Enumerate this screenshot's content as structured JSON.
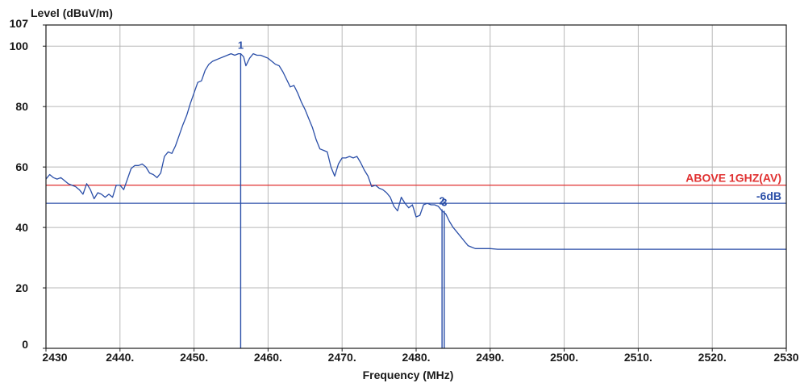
{
  "chart_data": {
    "type": "line",
    "title": "",
    "ylabel": "Level (dBuV/m)",
    "xlabel": "Frequency (MHz)",
    "xlim": [
      2430,
      2530
    ],
    "ylim": [
      0,
      107
    ],
    "x_ticks": [
      {
        "value": 2430,
        "label": "2430"
      },
      {
        "value": 2440,
        "label": "2440."
      },
      {
        "value": 2450,
        "label": "2450."
      },
      {
        "value": 2460,
        "label": "2460."
      },
      {
        "value": 2470,
        "label": "2470."
      },
      {
        "value": 2480,
        "label": "2480."
      },
      {
        "value": 2490,
        "label": "2490."
      },
      {
        "value": 2500,
        "label": "2500."
      },
      {
        "value": 2510,
        "label": "2510."
      },
      {
        "value": 2520,
        "label": "2520."
      },
      {
        "value": 2530,
        "label": "2530"
      }
    ],
    "y_ticks": [
      {
        "value": 0,
        "label": "0"
      },
      {
        "value": 20,
        "label": "20"
      },
      {
        "value": 40,
        "label": "40"
      },
      {
        "value": 60,
        "label": "60"
      },
      {
        "value": 80,
        "label": "80"
      },
      {
        "value": 100,
        "label": "100"
      },
      {
        "value": 107,
        "label": "107"
      }
    ],
    "grid": true,
    "series": [
      {
        "color": "#2b4fa8",
        "points": [
          [
            2430.0,
            56.0
          ],
          [
            2430.5,
            57.5
          ],
          [
            2431.0,
            56.5
          ],
          [
            2431.5,
            56.0
          ],
          [
            2432.0,
            56.5
          ],
          [
            2432.5,
            55.5
          ],
          [
            2433.0,
            54.5
          ],
          [
            2433.5,
            54.0
          ],
          [
            2434.0,
            53.5
          ],
          [
            2434.5,
            52.5
          ],
          [
            2435.0,
            51.0
          ],
          [
            2435.5,
            54.5
          ],
          [
            2436.0,
            52.5
          ],
          [
            2436.5,
            49.5
          ],
          [
            2437.0,
            51.5
          ],
          [
            2437.5,
            51.0
          ],
          [
            2438.0,
            50.0
          ],
          [
            2438.5,
            51.0
          ],
          [
            2439.0,
            50.0
          ],
          [
            2439.5,
            54.0
          ],
          [
            2440.0,
            54.0
          ],
          [
            2440.5,
            52.5
          ],
          [
            2441.0,
            56.0
          ],
          [
            2441.5,
            59.5
          ],
          [
            2442.0,
            60.5
          ],
          [
            2442.5,
            60.5
          ],
          [
            2443.0,
            61.0
          ],
          [
            2443.5,
            60.0
          ],
          [
            2444.0,
            58.0
          ],
          [
            2444.5,
            57.5
          ],
          [
            2445.0,
            56.5
          ],
          [
            2445.5,
            58.0
          ],
          [
            2446.0,
            63.5
          ],
          [
            2446.5,
            65.0
          ],
          [
            2447.0,
            64.5
          ],
          [
            2447.5,
            67.0
          ],
          [
            2448.0,
            70.5
          ],
          [
            2448.5,
            74.0
          ],
          [
            2449.0,
            77.0
          ],
          [
            2449.5,
            81.0
          ],
          [
            2450.0,
            84.5
          ],
          [
            2450.5,
            88.0
          ],
          [
            2451.0,
            88.5
          ],
          [
            2451.5,
            92.0
          ],
          [
            2452.0,
            94.0
          ],
          [
            2452.5,
            95.0
          ],
          [
            2453.0,
            95.5
          ],
          [
            2453.5,
            96.0
          ],
          [
            2454.0,
            96.5
          ],
          [
            2454.5,
            97.0
          ],
          [
            2455.0,
            97.5
          ],
          [
            2455.5,
            97.0
          ],
          [
            2456.0,
            97.5
          ],
          [
            2456.3,
            97.5
          ],
          [
            2456.7,
            96.5
          ],
          [
            2457.0,
            93.5
          ],
          [
            2457.5,
            96.0
          ],
          [
            2458.0,
            97.5
          ],
          [
            2458.5,
            97.0
          ],
          [
            2459.0,
            97.0
          ],
          [
            2459.5,
            96.5
          ],
          [
            2460.0,
            96.0
          ],
          [
            2460.5,
            95.0
          ],
          [
            2461.0,
            94.0
          ],
          [
            2461.5,
            93.5
          ],
          [
            2462.0,
            91.5
          ],
          [
            2462.5,
            89.0
          ],
          [
            2463.0,
            86.5
          ],
          [
            2463.5,
            87.0
          ],
          [
            2464.0,
            84.5
          ],
          [
            2464.5,
            81.5
          ],
          [
            2465.0,
            79.0
          ],
          [
            2465.5,
            76.0
          ],
          [
            2466.0,
            73.0
          ],
          [
            2466.5,
            69.0
          ],
          [
            2467.0,
            66.0
          ],
          [
            2467.5,
            65.5
          ],
          [
            2468.0,
            65.0
          ],
          [
            2468.5,
            60.0
          ],
          [
            2469.0,
            57.0
          ],
          [
            2469.5,
            61.0
          ],
          [
            2470.0,
            63.0
          ],
          [
            2470.5,
            63.0
          ],
          [
            2471.0,
            63.5
          ],
          [
            2471.5,
            63.0
          ],
          [
            2472.0,
            63.5
          ],
          [
            2472.5,
            61.5
          ],
          [
            2473.0,
            59.0
          ],
          [
            2473.5,
            57.0
          ],
          [
            2474.0,
            53.5
          ],
          [
            2474.5,
            54.0
          ],
          [
            2475.0,
            53.0
          ],
          [
            2475.5,
            52.5
          ],
          [
            2476.0,
            51.5
          ],
          [
            2476.5,
            50.0
          ],
          [
            2477.0,
            47.0
          ],
          [
            2477.5,
            45.5
          ],
          [
            2478.0,
            50.0
          ],
          [
            2478.5,
            48.0
          ],
          [
            2479.0,
            46.5
          ],
          [
            2479.5,
            47.5
          ],
          [
            2480.0,
            43.5
          ],
          [
            2480.5,
            44.0
          ],
          [
            2481.0,
            47.5
          ],
          [
            2481.5,
            48.0
          ],
          [
            2482.0,
            47.5
          ],
          [
            2482.5,
            47.5
          ],
          [
            2483.0,
            47.0
          ],
          [
            2483.5,
            45.5
          ],
          [
            2484.0,
            44.5
          ],
          [
            2484.5,
            42.0
          ],
          [
            2485.0,
            40.0
          ],
          [
            2485.5,
            38.5
          ],
          [
            2486.0,
            37.0
          ],
          [
            2486.5,
            35.5
          ],
          [
            2487.0,
            34.0
          ],
          [
            2487.5,
            33.5
          ],
          [
            2488.0,
            33.0
          ],
          [
            2489.0,
            33.0
          ],
          [
            2490.0,
            33.0
          ],
          [
            2491.0,
            32.8
          ],
          [
            2495.0,
            32.8
          ],
          [
            2500.0,
            32.8
          ],
          [
            2510.0,
            32.8
          ],
          [
            2520.0,
            32.8
          ],
          [
            2530.0,
            32.8
          ]
        ]
      }
    ],
    "reference_lines": [
      {
        "label": "ABOVE 1GHZ(AV)",
        "value": 54,
        "color": "#e03030"
      },
      {
        "label": "-6dB",
        "value": 48,
        "color": "#2b4fa8"
      }
    ],
    "markers": [
      {
        "label": "1",
        "x": 2456.3,
        "y": 97.5,
        "color": "#2b4fa8"
      },
      {
        "label": "2",
        "x": 2483.5,
        "y": 46.0,
        "color": "#2b4fa8"
      },
      {
        "label": "3",
        "x": 2483.8,
        "y": 45.5,
        "color": "#2b4fa8"
      }
    ]
  }
}
